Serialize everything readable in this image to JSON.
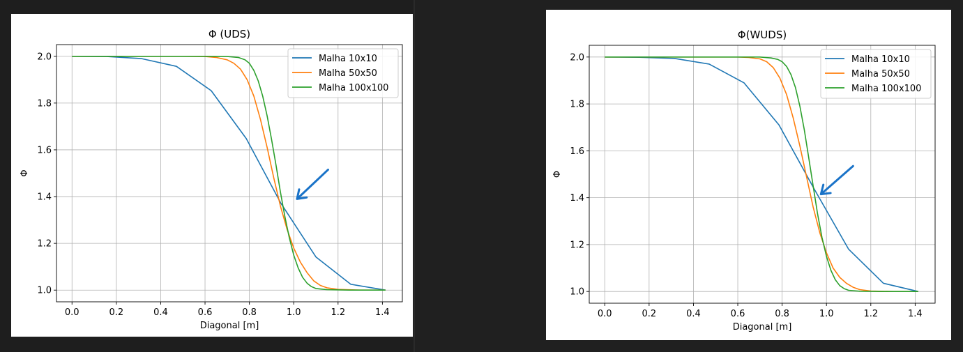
{
  "colors": {
    "background": "#202020",
    "series": [
      "#1f77b4",
      "#ff7f0e",
      "#2ca02c"
    ],
    "grid": "#b0b0b0",
    "arrow": "#1a73c8"
  },
  "chart_data": [
    {
      "type": "line",
      "title": "Φ (UDS)",
      "xlabel": "Diagonal [m]",
      "ylabel": "Φ",
      "xlim": [
        -0.07,
        1.49
      ],
      "ylim": [
        0.95,
        2.05
      ],
      "xticks": [
        0.0,
        0.2,
        0.4,
        0.6,
        0.8,
        1.0,
        1.2,
        1.4
      ],
      "xtick_labels": [
        "0.0",
        "0.2",
        "0.4",
        "0.6",
        "0.8",
        "1.0",
        "1.2",
        "1.4"
      ],
      "yticks": [
        1.0,
        1.2,
        1.4,
        1.6,
        1.8,
        2.0
      ],
      "ytick_labels": [
        "1.0",
        "1.2",
        "1.4",
        "1.6",
        "1.8",
        "2.0"
      ],
      "grid": true,
      "legend": "upper right",
      "series": [
        {
          "name": "Malha 10x10",
          "x": [
            0.0,
            0.157,
            0.314,
            0.471,
            0.628,
            0.786,
            0.943,
            1.1,
            1.257,
            1.414
          ],
          "y": [
            2.0,
            1.999,
            1.99,
            1.957,
            1.853,
            1.648,
            1.37,
            1.142,
            1.025,
            1.0
          ]
        },
        {
          "name": "Malha 50x50",
          "x": [
            0.0,
            0.5,
            0.6,
            0.65,
            0.7,
            0.73,
            0.76,
            0.79,
            0.82,
            0.85,
            0.88,
            0.91,
            0.94,
            0.97,
            1.0,
            1.03,
            1.06,
            1.09,
            1.12,
            1.15,
            1.2,
            1.3,
            1.414
          ],
          "y": [
            2.0,
            2.0,
            1.999,
            1.995,
            1.985,
            1.97,
            1.945,
            1.9,
            1.83,
            1.73,
            1.61,
            1.48,
            1.36,
            1.26,
            1.18,
            1.12,
            1.075,
            1.04,
            1.02,
            1.01,
            1.003,
            1.0,
            1.0
          ]
        },
        {
          "name": "Malha 100x100",
          "x": [
            0.0,
            0.6,
            0.7,
            0.75,
            0.78,
            0.8,
            0.82,
            0.84,
            0.86,
            0.88,
            0.9,
            0.92,
            0.94,
            0.96,
            0.98,
            1.0,
            1.02,
            1.04,
            1.06,
            1.08,
            1.1,
            1.15,
            1.25,
            1.414
          ],
          "y": [
            2.0,
            2.0,
            1.999,
            1.995,
            1.985,
            1.97,
            1.94,
            1.895,
            1.83,
            1.745,
            1.645,
            1.535,
            1.42,
            1.315,
            1.225,
            1.15,
            1.095,
            1.055,
            1.03,
            1.015,
            1.007,
            1.002,
            1.0,
            1.0
          ]
        }
      ],
      "annotation": {
        "type": "arrow",
        "from": [
          1.155,
          1.515
        ],
        "to": [
          1.015,
          1.39
        ]
      }
    },
    {
      "type": "line",
      "title": "Φ(WUDS)",
      "xlabel": "Diagonal [m]",
      "ylabel": "Φ",
      "xlim": [
        -0.07,
        1.49
      ],
      "ylim": [
        0.95,
        2.05
      ],
      "xticks": [
        0.0,
        0.2,
        0.4,
        0.6,
        0.8,
        1.0,
        1.2,
        1.4
      ],
      "xtick_labels": [
        "0.0",
        "0.2",
        "0.4",
        "0.6",
        "0.8",
        "1.0",
        "1.2",
        "1.4"
      ],
      "yticks": [
        1.0,
        1.2,
        1.4,
        1.6,
        1.8,
        2.0
      ],
      "ytick_labels": [
        "1.0",
        "1.2",
        "1.4",
        "1.6",
        "1.8",
        "2.0"
      ],
      "grid": true,
      "legend": "upper right",
      "series": [
        {
          "name": "Malha 10x10",
          "x": [
            0.0,
            0.157,
            0.314,
            0.471,
            0.628,
            0.786,
            0.943,
            1.1,
            1.257,
            1.414
          ],
          "y": [
            2.0,
            1.999,
            1.994,
            1.97,
            1.89,
            1.71,
            1.44,
            1.18,
            1.035,
            1.0
          ]
        },
        {
          "name": "Malha 50x50",
          "x": [
            0.0,
            0.6,
            0.65,
            0.7,
            0.73,
            0.76,
            0.79,
            0.82,
            0.85,
            0.88,
            0.91,
            0.94,
            0.97,
            1.0,
            1.03,
            1.06,
            1.09,
            1.12,
            1.15,
            1.2,
            1.3,
            1.414
          ],
          "y": [
            2.0,
            2.0,
            1.998,
            1.992,
            1.98,
            1.955,
            1.91,
            1.84,
            1.74,
            1.62,
            1.49,
            1.36,
            1.25,
            1.165,
            1.1,
            1.06,
            1.035,
            1.018,
            1.008,
            1.002,
            1.0,
            1.0
          ]
        },
        {
          "name": "Malha 100x100",
          "x": [
            0.0,
            0.7,
            0.75,
            0.78,
            0.8,
            0.82,
            0.84,
            0.86,
            0.88,
            0.9,
            0.92,
            0.94,
            0.96,
            0.98,
            1.0,
            1.02,
            1.04,
            1.06,
            1.08,
            1.1,
            1.15,
            1.25,
            1.414
          ],
          "y": [
            2.0,
            2.0,
            1.996,
            1.99,
            1.98,
            1.96,
            1.925,
            1.87,
            1.79,
            1.69,
            1.57,
            1.45,
            1.33,
            1.23,
            1.15,
            1.09,
            1.05,
            1.025,
            1.012,
            1.005,
            1.001,
            1.0,
            1.0
          ]
        }
      ],
      "annotation": {
        "type": "arrow",
        "from": [
          1.12,
          1.535
        ],
        "to": [
          0.975,
          1.415
        ]
      }
    }
  ]
}
